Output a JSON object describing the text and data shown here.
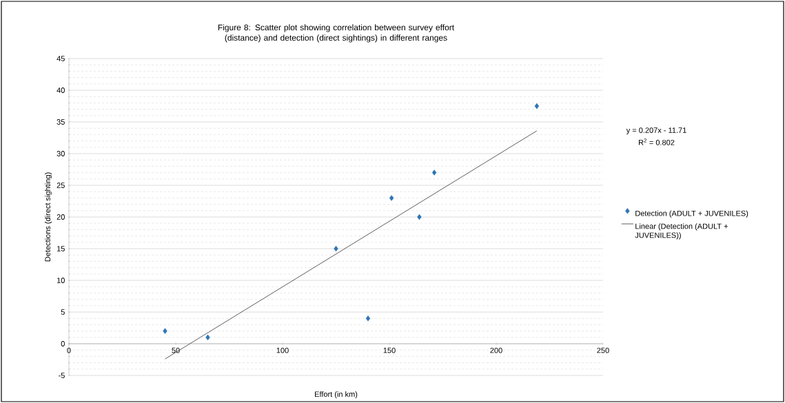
{
  "chart_data": {
    "type": "scatter",
    "title": "Figure 8: Scatter plot showing correlation between survey effort (distance) and detection (direct sightings) in different ranges",
    "xlabel": "Effort (in km)",
    "ylabel": "Detections (direct sighting)",
    "xlim": [
      0,
      250
    ],
    "xticks": [
      0,
      50,
      100,
      150,
      200,
      250
    ],
    "ylim": [
      -5,
      45
    ],
    "yticks": [
      -5,
      0,
      5,
      10,
      15,
      20,
      25,
      30,
      35,
      40,
      45
    ],
    "grid": "y",
    "legend": "right",
    "annotations": [
      "y = 0.207x - 11.71",
      "R$^{2}$ = 0.802"
    ],
    "series": [
      {
        "name": "Detection (ADULT + JUVENILES)",
        "type": "scatter",
        "marker": "diamond",
        "color": "#2e75b6",
        "x": [
          45,
          65,
          125,
          140,
          151,
          164,
          171,
          219
        ],
        "values": [
          2,
          1,
          15,
          4,
          23,
          20,
          27,
          37.5
        ]
      },
      {
        "name": "Linear (Detection (ADULT + JUVENILES))",
        "type": "line",
        "marker": "none",
        "color": "#333333",
        "x": [
          45,
          219
        ],
        "values": [
          -2.4,
          33.6
        ]
      }
    ]
  }
}
